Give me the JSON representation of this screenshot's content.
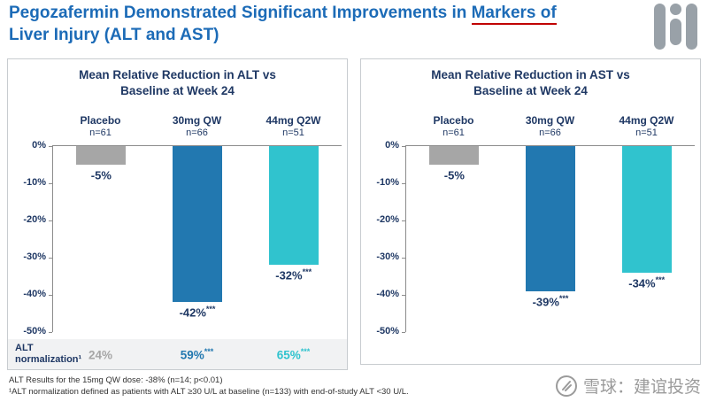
{
  "title": {
    "line1_prefix": "Pegozafermin Demonstrated Significant Improvements in ",
    "line1_underlined": "Markers of",
    "line2": "Liver Injury (ALT and AST)"
  },
  "colors": {
    "title_blue": "#1C6BB7",
    "navy_text": "#1F3864",
    "grey_bar": "#A6A6A6",
    "blue_bar": "#2278B0",
    "teal_bar": "#30C3CE",
    "underline_red": "#C00000"
  },
  "chart_data": [
    {
      "type": "bar",
      "title_line1": "Mean Relative Reduction in ALT vs",
      "title_line2": "Baseline at Week 24",
      "categories": [
        "Placebo",
        "30mg QW",
        "44mg Q2W"
      ],
      "ns": [
        "n=61",
        "n=66",
        "n=51"
      ],
      "values": [
        -5,
        -42,
        -32
      ],
      "value_labels": [
        "-5%",
        "-42%",
        "-32%"
      ],
      "stars": [
        "",
        "***",
        "***"
      ],
      "bar_colors": [
        "#A6A6A6",
        "#2278B0",
        "#30C3CE"
      ],
      "ylim": [
        -50,
        0
      ],
      "yticks": [
        "0%",
        "-10%",
        "-20%",
        "-30%",
        "-40%",
        "-50%"
      ],
      "normalization": {
        "label_line1": "ALT",
        "label_line2": "normalization¹",
        "values": [
          "24%",
          "59%",
          "65%"
        ],
        "stars": [
          "",
          "***",
          "***"
        ]
      }
    },
    {
      "type": "bar",
      "title_line1": "Mean Relative Reduction in AST vs",
      "title_line2": "Baseline at Week 24",
      "categories": [
        "Placebo",
        "30mg QW",
        "44mg Q2W"
      ],
      "ns": [
        "n=61",
        "n=66",
        "n=51"
      ],
      "values": [
        -5,
        -39,
        -34
      ],
      "value_labels": [
        "-5%",
        "-39%",
        "-34%"
      ],
      "stars": [
        "",
        "***",
        "***"
      ],
      "bar_colors": [
        "#A6A6A6",
        "#2278B0",
        "#30C3CE"
      ],
      "ylim": [
        -50,
        0
      ],
      "yticks": [
        "0%",
        "-10%",
        "-20%",
        "-30%",
        "-40%",
        "-50%"
      ]
    }
  ],
  "footnotes": {
    "line1": "ALT Results for the 15mg QW dose: -38% (n=14; p<0.01)",
    "line2": "¹ALT normalization defined as patients with ALT ≥30 U/L at baseline (n=133) with end-of-study ALT <30 U/L."
  },
  "watermark": {
    "text": "雪球：建谊投资"
  }
}
